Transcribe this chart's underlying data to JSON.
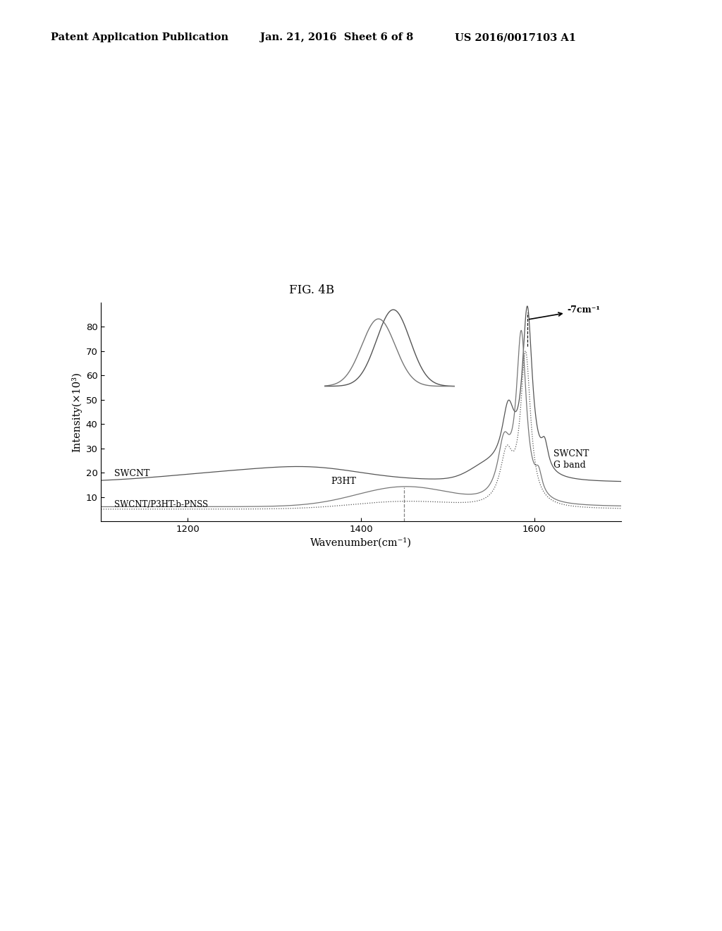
{
  "title": "FIG. 4B",
  "xlabel": "Wavenumber(cm⁻¹)",
  "ylabel": "Intensity(×10³)",
  "xlim": [
    1100,
    1700
  ],
  "ylim": [
    0,
    90
  ],
  "yticks": [
    10,
    20,
    30,
    40,
    50,
    60,
    70,
    80
  ],
  "xticks": [
    1200,
    1400,
    1600
  ],
  "background_color": "#ffffff",
  "header_left": "Patent Application Publication",
  "header_mid": "Jan. 21, 2016  Sheet 6 of 8",
  "header_right": "US 2016/0017103 A1",
  "inset_annotation": "-7cm⁻¹",
  "label_swcnt": "SWCNT",
  "label_p3ht": "P3HT",
  "label_swcnt_gband": "SWCNT\nG band",
  "label_composite": "SWCNT/P3HT-b-PNSS",
  "fig_label": "FIG. 4B"
}
